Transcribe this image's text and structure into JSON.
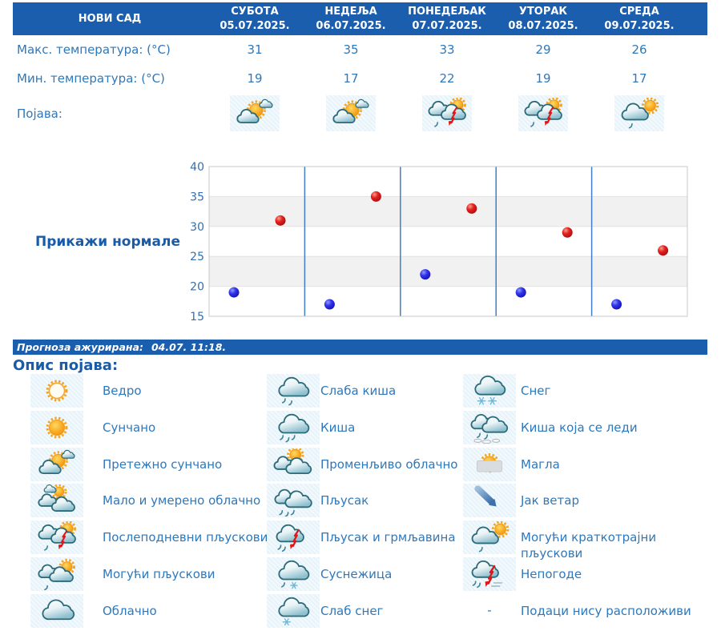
{
  "header": {
    "city": "НОВИ САД",
    "days": [
      {
        "name": "СУБОТА",
        "date": "05.07.2025."
      },
      {
        "name": "НЕДЕЉА",
        "date": "06.07.2025."
      },
      {
        "name": "ПОНЕДЕЉАК",
        "date": "07.07.2025."
      },
      {
        "name": "УТОРАК",
        "date": "08.07.2025."
      },
      {
        "name": "СРЕДА",
        "date": "09.07.2025."
      }
    ]
  },
  "rows": {
    "max_label": "Макс. температура: (°C)",
    "min_label": "Мин. температура: (°C)",
    "phenomena_label": "Појава:",
    "max_values": [
      31,
      35,
      33,
      29,
      26
    ],
    "min_values": [
      19,
      17,
      22,
      19,
      17
    ],
    "phenomena_icons": [
      "mostly-sunny",
      "mostly-sunny",
      "afternoon-showers",
      "afternoon-showers",
      "possible-brief-showers"
    ]
  },
  "chart": {
    "link_label": "Прикажи нормале"
  },
  "chart_data": {
    "type": "scatter",
    "title": "",
    "categories": [
      "05.07.2025.",
      "06.07.2025.",
      "07.07.2025.",
      "08.07.2025.",
      "09.07.2025."
    ],
    "series": [
      {
        "name": "Макс. температура (°C)",
        "color": "#cc1111",
        "values": [
          31,
          35,
          33,
          29,
          26
        ]
      },
      {
        "name": "Мин. температура (°C)",
        "color": "#1111cc",
        "values": [
          19,
          17,
          22,
          19,
          17
        ]
      }
    ],
    "ylim": [
      15,
      40
    ],
    "yticks": [
      40,
      35,
      30,
      25,
      20,
      15
    ],
    "grid": "horizontal-stripes",
    "legend_position": "none"
  },
  "update_bar": {
    "label": "Прогноза ажурирана:",
    "time": "04.07. 11:18."
  },
  "legend": {
    "title": "Опис појава:",
    "columns": [
      [
        {
          "icon": "clear",
          "label": "Ведро"
        },
        {
          "icon": "sunny",
          "label": "Сунчано"
        },
        {
          "icon": "mostly-sunny",
          "label": "Претежно сунчано"
        },
        {
          "icon": "partly-cloudy",
          "label": "Мало и умерено облачно"
        },
        {
          "icon": "afternoon-showers",
          "label": "Послеподневни пљускови"
        },
        {
          "icon": "possible-showers",
          "label": "Могући пљускови"
        },
        {
          "icon": "cloudy",
          "label": "Облачно"
        }
      ],
      [
        {
          "icon": "light-rain",
          "label": "Слаба киша"
        },
        {
          "icon": "rain",
          "label": "Киша"
        },
        {
          "icon": "variable-cloudy",
          "label": "Променљиво облачно"
        },
        {
          "icon": "shower",
          "label": "Пљусак"
        },
        {
          "icon": "thunderstorm",
          "label": "Пљусак и грмљавина"
        },
        {
          "icon": "sleet",
          "label": "Суснежица"
        },
        {
          "icon": "light-snow",
          "label": "Слаб снег"
        }
      ],
      [
        {
          "icon": "snow",
          "label": "Снег"
        },
        {
          "icon": "freezing-rain",
          "label": "Киша која се леди"
        },
        {
          "icon": "fog",
          "label": "Магла"
        },
        {
          "icon": "strong-wind",
          "label": "Јак ветар"
        },
        {
          "icon": "possible-brief-showers",
          "label": "Могући краткотрајни пљускови"
        },
        {
          "icon": "storms",
          "label": "Непогоде"
        },
        {
          "icon": "none",
          "label": "Подаци нису расположиви"
        }
      ]
    ]
  },
  "colors": {
    "header_bar": "#1c5eae",
    "text_blue": "#2e78bc",
    "link_blue": "#1a5ba8",
    "max_dot": "#cc1111",
    "min_dot": "#1111cc",
    "stripe_gray": "#f1f1f1",
    "day_separator": "#3f7fc4"
  }
}
